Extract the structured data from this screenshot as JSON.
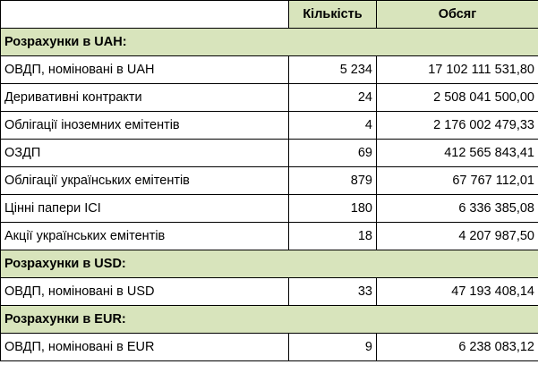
{
  "table": {
    "headers": [
      "",
      "Кількість",
      "Обсяг"
    ],
    "sections": [
      {
        "title": "Розрахунки в UAH:",
        "rows": [
          {
            "name": "ОВДП, номіновані в UAH",
            "count": "5 234",
            "volume": "17 102 111 531,80"
          },
          {
            "name": "Деривативні контракти",
            "count": "24",
            "volume": "2 508 041 500,00"
          },
          {
            "name": "Облігації іноземних емітентів",
            "count": "4",
            "volume": "2 176 002 479,33"
          },
          {
            "name": "ОЗДП",
            "count": "69",
            "volume": "412 565 843,41"
          },
          {
            "name": "Облігації українських емітентів",
            "count": "879",
            "volume": "67 767 112,01"
          },
          {
            "name": "Цінні папери ІСІ",
            "count": "180",
            "volume": "6 336 385,08"
          },
          {
            "name": "Акції українських емітентів",
            "count": "18",
            "volume": "4 207 987,50"
          }
        ]
      },
      {
        "title": "Розрахунки в USD:",
        "rows": [
          {
            "name": "ОВДП, номіновані в USD",
            "count": "33",
            "volume": "47 193 408,14"
          }
        ]
      },
      {
        "title": "Розрахунки в EUR:",
        "rows": [
          {
            "name": "ОВДП, номіновані в EUR",
            "count": "9",
            "volume": "6 238 083,12"
          }
        ]
      }
    ]
  },
  "colors": {
    "header_fill": "#d8e4bc",
    "section_fill": "#d8e4bc",
    "border": "#000000"
  }
}
